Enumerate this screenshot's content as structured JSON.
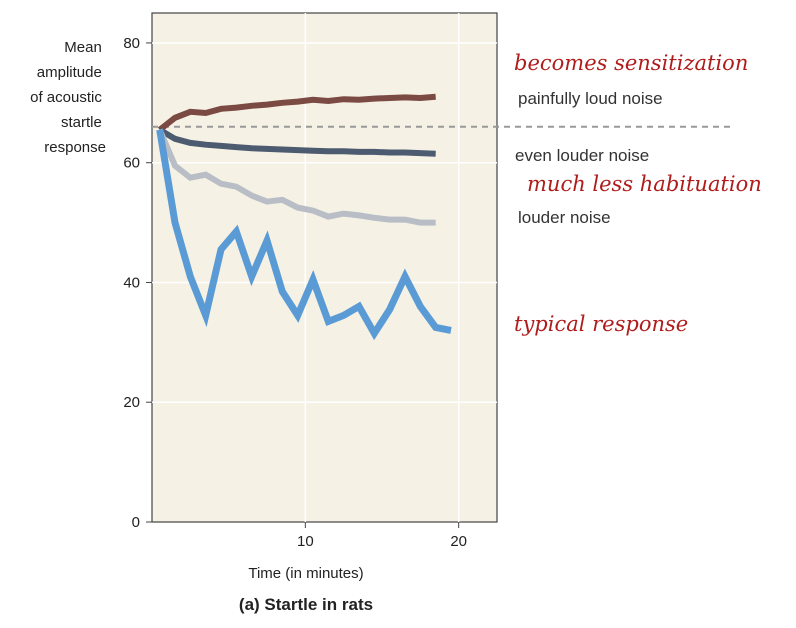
{
  "chart_data": {
    "type": "line",
    "title": "(a) Startle in rats",
    "xlabel": "Time (in minutes)",
    "ylabel": [
      "Mean",
      "amplitude",
      "of acoustic",
      "startle",
      "response"
    ],
    "xlim": [
      0,
      22.5
    ],
    "ylim": [
      0,
      85
    ],
    "xticks": [
      10,
      20
    ],
    "yticks": [
      0,
      20,
      40,
      60,
      80
    ],
    "grid": true,
    "reference_line": {
      "y": 66,
      "style": "dashed"
    },
    "series": [
      {
        "name": "painfully loud noise",
        "color": "#7a4a43",
        "x": [
          0.5,
          1.5,
          2.5,
          3.5,
          4.5,
          5.5,
          6.5,
          7.5,
          8.5,
          9.5,
          10.5,
          11.5,
          12.5,
          13.5,
          14.5,
          15.5,
          16.5,
          17.5,
          18.5
        ],
        "y": [
          65.5,
          67.5,
          68.5,
          68.3,
          69.0,
          69.2,
          69.5,
          69.7,
          70.0,
          70.2,
          70.5,
          70.3,
          70.6,
          70.5,
          70.7,
          70.8,
          70.9,
          70.8,
          71.0
        ]
      },
      {
        "name": "even louder noise",
        "color": "#4d5b70",
        "x": [
          0.5,
          1.5,
          2.5,
          3.5,
          4.5,
          5.5,
          6.5,
          7.5,
          8.5,
          9.5,
          10.5,
          11.5,
          12.5,
          13.5,
          14.5,
          15.5,
          16.5,
          17.5,
          18.5
        ],
        "y": [
          65.5,
          64.0,
          63.3,
          63.0,
          62.8,
          62.6,
          62.4,
          62.3,
          62.2,
          62.1,
          62.0,
          61.9,
          61.9,
          61.8,
          61.8,
          61.7,
          61.7,
          61.6,
          61.5
        ]
      },
      {
        "name": "louder noise",
        "color": "#b9bec6",
        "x": [
          0.5,
          1.5,
          2.5,
          3.5,
          4.5,
          5.5,
          6.5,
          7.5,
          8.5,
          9.5,
          10.5,
          11.5,
          12.5,
          13.5,
          14.5,
          15.5,
          16.5,
          17.5,
          18.5
        ],
        "y": [
          65.5,
          59.5,
          57.5,
          58.0,
          56.5,
          56.0,
          54.5,
          53.5,
          53.8,
          52.5,
          52.0,
          51.0,
          51.5,
          51.2,
          50.8,
          50.5,
          50.5,
          50.0,
          50.0
        ]
      },
      {
        "name": "typical response",
        "color": "#5b9bd5",
        "x": [
          0.5,
          1.5,
          2.5,
          3.5,
          4.5,
          5.5,
          6.5,
          7.5,
          8.5,
          9.5,
          10.5,
          11.5,
          12.5,
          13.5,
          14.5,
          15.5,
          16.5,
          17.5,
          18.5,
          19.5
        ],
        "y": [
          65.5,
          50.0,
          41.0,
          34.5,
          45.5,
          48.5,
          41.0,
          47.0,
          38.5,
          34.5,
          40.5,
          33.5,
          34.5,
          36.0,
          31.5,
          35.5,
          41.0,
          36.0,
          32.5,
          32.0
        ]
      }
    ]
  },
  "annotations": {
    "painfully": "painfully loud noise",
    "even_louder": "even louder noise",
    "louder": "louder noise",
    "hand_sensitization": "becomes sensitization",
    "hand_habituation": "much less habituation",
    "hand_typical": "typical response"
  }
}
